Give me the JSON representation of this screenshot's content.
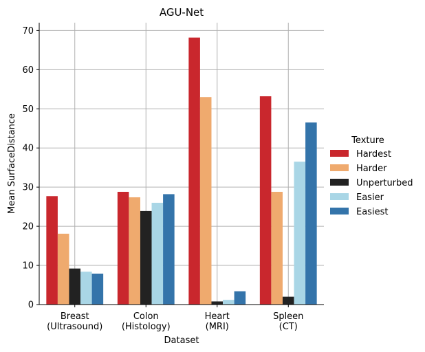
{
  "chart_data": {
    "type": "bar",
    "title": "AGU-Net",
    "xlabel": "Dataset",
    "ylabel": "Mean SurfaceDistance",
    "ylim": [
      0,
      72
    ],
    "yticks": [
      0,
      10,
      20,
      30,
      40,
      50,
      60,
      70
    ],
    "grid": true,
    "legend_title": "Texture",
    "legend_position": "right",
    "categories": [
      [
        "Breast",
        "(Ultrasound)"
      ],
      [
        "Colon",
        "(Histology)"
      ],
      [
        "Heart",
        "(MRI)"
      ],
      [
        "Spleen",
        "(CT)"
      ]
    ],
    "series": [
      {
        "name": "Hardest",
        "color": "#c9272d",
        "values": [
          27.7,
          28.8,
          68.2,
          53.2
        ]
      },
      {
        "name": "Harder",
        "color": "#efaa6e",
        "values": [
          18.1,
          27.4,
          53.0,
          28.8
        ]
      },
      {
        "name": "Unperturbed",
        "color": "#222222",
        "values": [
          9.2,
          23.9,
          0.8,
          2.0
        ]
      },
      {
        "name": "Easier",
        "color": "#a9d6e6",
        "values": [
          8.4,
          26.0,
          1.2,
          36.5
        ]
      },
      {
        "name": "Easiest",
        "color": "#3474aa",
        "values": [
          7.9,
          28.2,
          3.4,
          46.5
        ]
      }
    ]
  }
}
